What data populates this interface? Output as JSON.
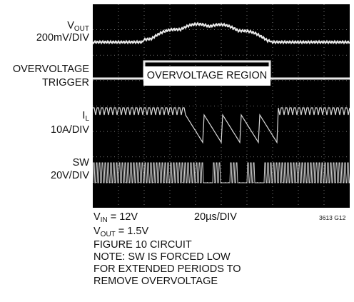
{
  "chart_data": {
    "type": "oscilloscope",
    "channels": [
      {
        "name": "V_OUT",
        "label_main": "V",
        "label_sub": "OUT",
        "scale": "200mV/DIV"
      },
      {
        "name": "OVERVOLTAGE TRIGGER",
        "label_line1": "OVERVOLTAGE",
        "label_line2": "TRIGGER"
      },
      {
        "name": "I_L",
        "label_main": "I",
        "label_sub": "L",
        "scale": "10A/DIV"
      },
      {
        "name": "SW",
        "label_main": "SW",
        "scale": "20V/DIV"
      }
    ],
    "annotation": "OVERVOLTAGE REGION",
    "timebase": "20µs/DIV",
    "figure_code": "3613 G12",
    "grid": true,
    "conditions": {
      "vin_main": "V",
      "vin_sub": "IN",
      "vin_value": " = 12V",
      "vout_main": "V",
      "vout_sub": "OUT",
      "vout_value": " = 1.5V",
      "circuit": "FIGURE 10 CIRCUIT",
      "note": [
        "NOTE: SW IS FORCED LOW",
        "FOR EXTENDED PERIODS TO",
        "REMOVE OVERVOLTAGE"
      ]
    }
  }
}
